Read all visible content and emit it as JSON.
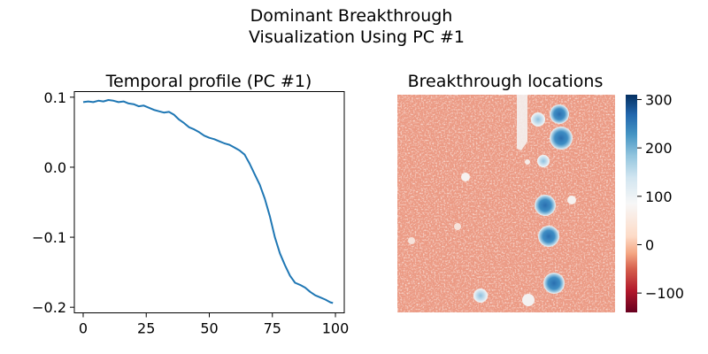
{
  "figure": {
    "suptitle_line1": "Dominant Breakthrough",
    "suptitle_line2": "Visualization Using PC #1"
  },
  "chart_data": [
    {
      "type": "line",
      "title": "Temporal profile (PC #1)",
      "xlabel": "",
      "ylabel": "",
      "xlim": [
        -3.5,
        103.5
      ],
      "ylim": [
        -0.208,
        0.108
      ],
      "xticks": [
        0,
        25,
        50,
        75,
        100
      ],
      "yticks": [
        0.1,
        0.0,
        -0.1,
        -0.2
      ],
      "xtick_labels": [
        "0",
        "25",
        "50",
        "75",
        "100"
      ],
      "ytick_labels": [
        "0.1",
        "0.0",
        "−0.1",
        "−0.2"
      ],
      "grid": false,
      "series": [
        {
          "color": "#1f77b4",
          "x": [
            0,
            2,
            4,
            6,
            8,
            10,
            12,
            14,
            16,
            18,
            20,
            22,
            24,
            26,
            28,
            30,
            32,
            34,
            36,
            38,
            40,
            42,
            44,
            46,
            48,
            50,
            52,
            54,
            56,
            58,
            60,
            62,
            64,
            66,
            68,
            70,
            72,
            74,
            76,
            78,
            80,
            82,
            84,
            86,
            88,
            90,
            92,
            94,
            96,
            98,
            99
          ],
          "y": [
            0.093,
            0.094,
            0.093,
            0.095,
            0.094,
            0.096,
            0.095,
            0.093,
            0.094,
            0.091,
            0.09,
            0.087,
            0.088,
            0.085,
            0.082,
            0.08,
            0.078,
            0.079,
            0.075,
            0.068,
            0.063,
            0.057,
            0.054,
            0.05,
            0.045,
            0.042,
            0.04,
            0.037,
            0.034,
            0.032,
            0.028,
            0.024,
            0.018,
            0.005,
            -0.01,
            -0.025,
            -0.045,
            -0.07,
            -0.1,
            -0.123,
            -0.14,
            -0.155,
            -0.165,
            -0.168,
            -0.172,
            -0.178,
            -0.183,
            -0.186,
            -0.189,
            -0.193,
            -0.194
          ]
        }
      ]
    },
    {
      "type": "heatmap",
      "title": "Breakthrough locations",
      "colormap": "RdBu",
      "colorbar_range": [
        -140,
        310
      ],
      "colorbar_ticks": [
        300,
        200,
        100,
        0,
        -100
      ],
      "colorbar_tick_labels": [
        "300",
        "200",
        "100",
        "0",
        "−100"
      ],
      "axes_visible": false
    }
  ]
}
